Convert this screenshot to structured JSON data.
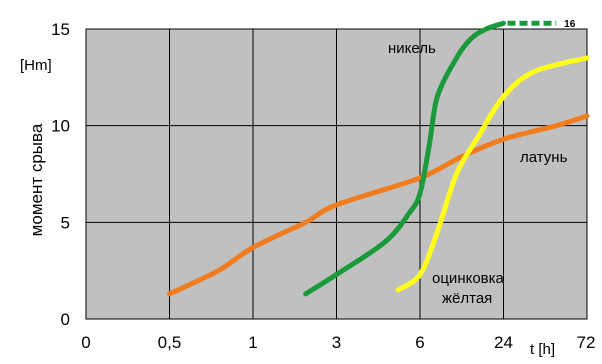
{
  "chart_data": {
    "type": "line",
    "title": "",
    "ylabel": "момент срыва",
    "y_unit": "[Hm]",
    "xlabel": "t [h]",
    "ylim": [
      0,
      15
    ],
    "y_ticks": [
      "0",
      "5",
      "10",
      "15"
    ],
    "x_ticks": [
      "0",
      "0,5",
      "1",
      "3",
      "6",
      "24",
      "72"
    ],
    "x_scale": "categorical-log-like",
    "grid": true,
    "legend": "none",
    "background": "#c0c0c0",
    "series": [
      {
        "name": "латунь",
        "color": "#f07c1e",
        "points": [
          {
            "x": 0.5,
            "y": 1.3
          },
          {
            "x": 0.75,
            "y": 2.5
          },
          {
            "x": 1,
            "y": 3.7
          },
          {
            "x": 2,
            "y": 5.0
          },
          {
            "x": 3,
            "y": 5.9
          },
          {
            "x": 6,
            "y": 7.3
          },
          {
            "x": 12,
            "y": 8.4
          },
          {
            "x": 24,
            "y": 9.3
          },
          {
            "x": 48,
            "y": 10.0
          },
          {
            "x": 72,
            "y": 10.5
          }
        ]
      },
      {
        "name": "никель",
        "color": "#1a9a3a",
        "points": [
          {
            "x": 2,
            "y": 1.3
          },
          {
            "x": 3,
            "y": 2.3
          },
          {
            "x": 4.5,
            "y": 4.0
          },
          {
            "x": 5.5,
            "y": 5.5
          },
          {
            "x": 6,
            "y": 6.5
          },
          {
            "x": 7,
            "y": 9.0
          },
          {
            "x": 8,
            "y": 11.5
          },
          {
            "x": 11,
            "y": 13.5
          },
          {
            "x": 14,
            "y": 14.5
          },
          {
            "x": 18,
            "y": 15.0
          },
          {
            "x": 24,
            "y": 15.3
          }
        ],
        "extension": {
          "from_x": 24,
          "to_x": 48,
          "y": 15.3,
          "label": "16",
          "style": "dashed"
        }
      },
      {
        "name": "оцинковка жёлтая",
        "label_lines": [
          "оцинковка",
          "жёлтая"
        ],
        "color": "#ffff1a",
        "points": [
          {
            "x": 5,
            "y": 1.5
          },
          {
            "x": 6,
            "y": 2.3
          },
          {
            "x": 8,
            "y": 4.5
          },
          {
            "x": 11,
            "y": 7.5
          },
          {
            "x": 16,
            "y": 9.5
          },
          {
            "x": 24,
            "y": 11.5
          },
          {
            "x": 36,
            "y": 12.8
          },
          {
            "x": 72,
            "y": 13.5
          }
        ]
      }
    ]
  }
}
